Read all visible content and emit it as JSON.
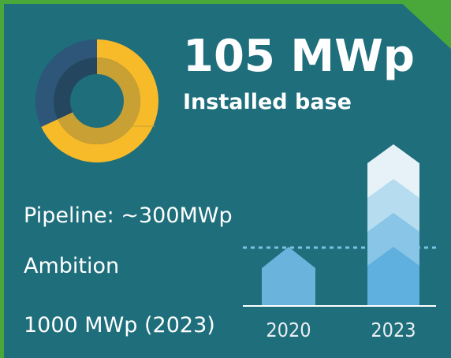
{
  "headline": {
    "value": "105 MWp",
    "label": "Installed base"
  },
  "pipeline": "Pipeline: ~300MWp",
  "ambition": {
    "title": "Ambition",
    "value": "1000 MWp (2023)"
  },
  "years": [
    "2020",
    "2023"
  ]
}
